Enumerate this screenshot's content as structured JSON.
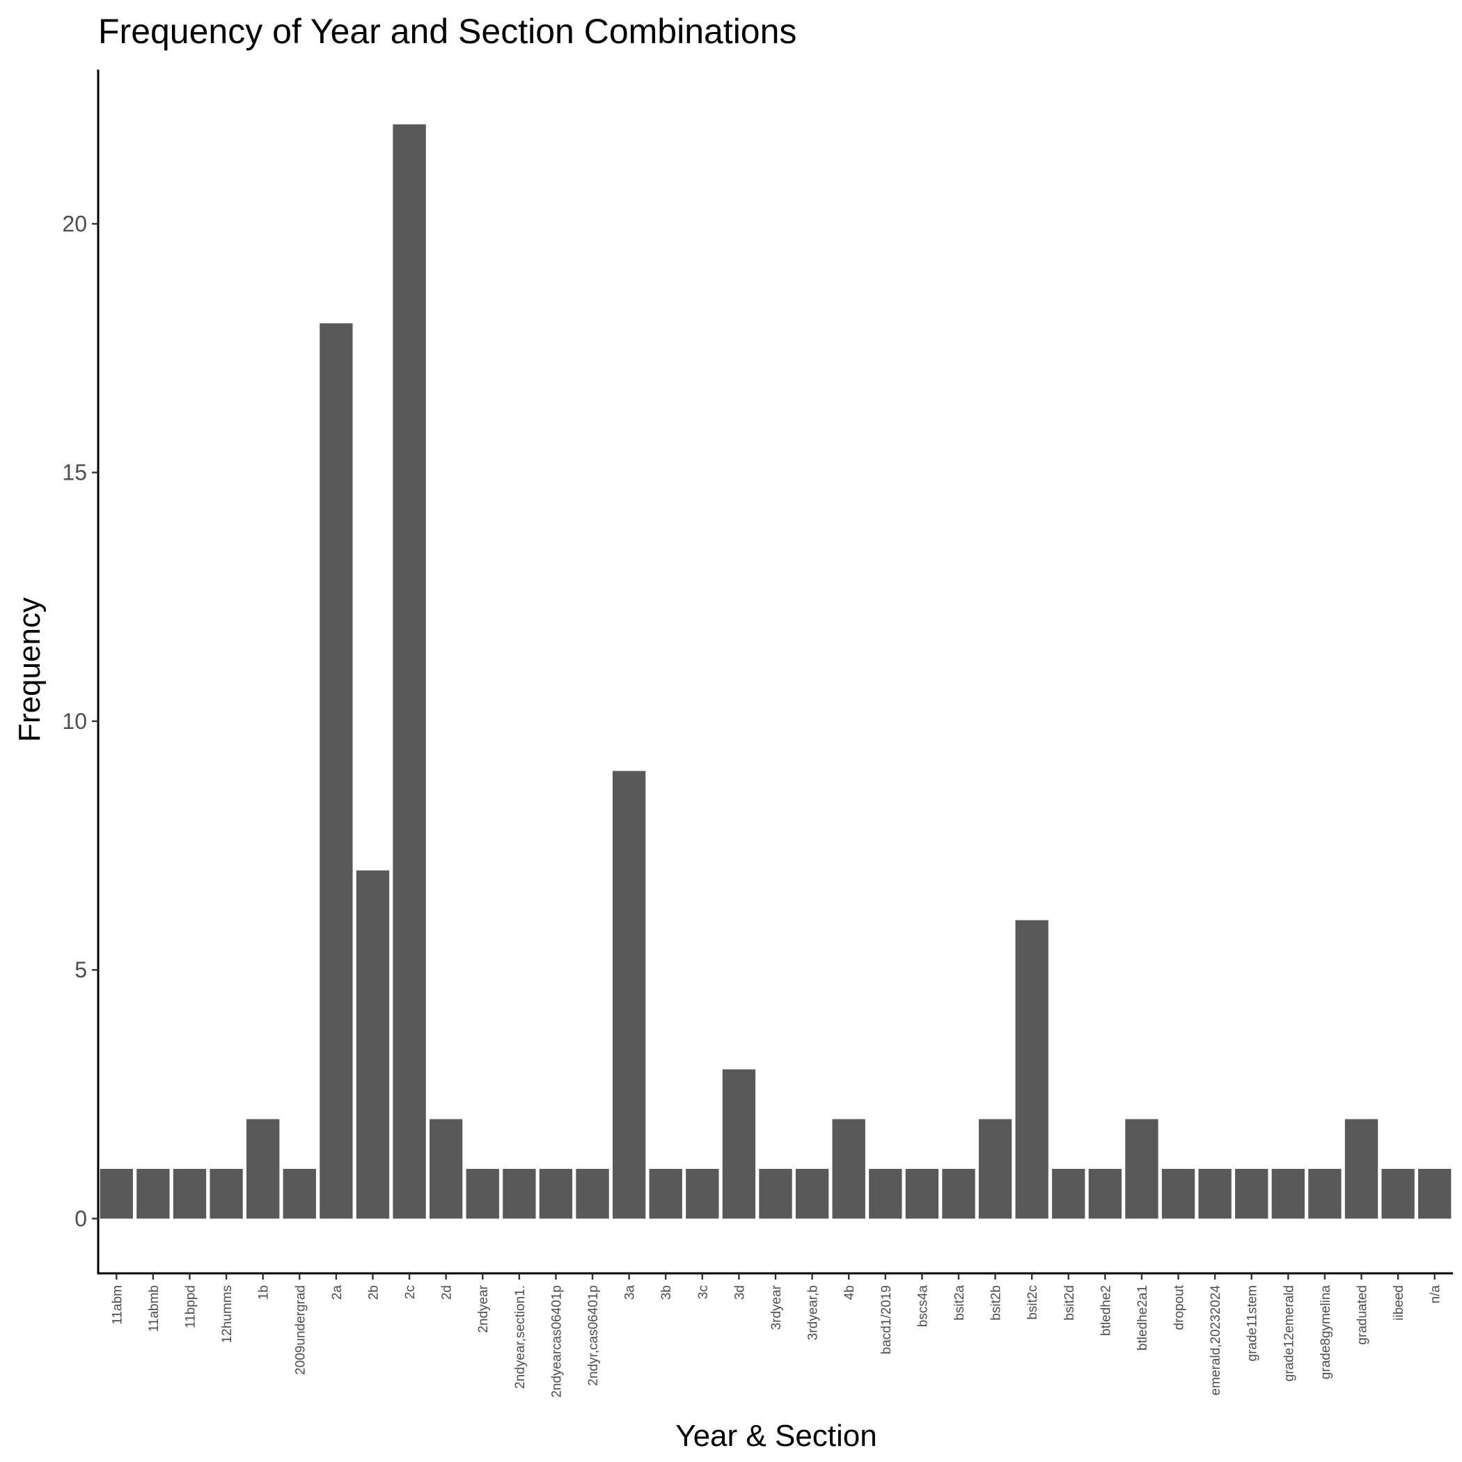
{
  "chart_data": {
    "type": "bar",
    "title": "Frequency of Year and Section Combinations",
    "xlabel": "Year & Section",
    "ylabel": "Frequency",
    "categories": [
      "11abm",
      "11abmb",
      "11bppd",
      "12humms",
      "1b",
      "2009undergrad",
      "2a",
      "2b",
      "2c",
      "2d",
      "2ndyear",
      "2ndyear,section1.",
      "2ndyearcas06401p",
      "2ndyr,cas06401p",
      "3a",
      "3b",
      "3c",
      "3d",
      "3rdyear",
      "3rdyear,b",
      "4b",
      "bacd1/2019",
      "bscs4a",
      "bsit2a",
      "bsit2b",
      "bsit2c",
      "bsit2d",
      "btledhe2",
      "btledhe2a1",
      "dropout",
      "emerald,20232024",
      "grade11stem",
      "grade12emerald",
      "grade8gymelina",
      "graduated",
      "iibeed",
      "n/a"
    ],
    "values": [
      1,
      1,
      1,
      1,
      2,
      1,
      18,
      7,
      22,
      2,
      1,
      1,
      1,
      1,
      9,
      1,
      1,
      3,
      1,
      1,
      2,
      1,
      1,
      1,
      2,
      6,
      1,
      1,
      2,
      1,
      1,
      1,
      1,
      1,
      2,
      1,
      1
    ],
    "y_ticks": [
      0,
      5,
      10,
      15,
      20
    ],
    "ylim": [
      -1.1,
      23.1
    ],
    "bar_color": "#595959",
    "grid": false,
    "legend": "none"
  }
}
